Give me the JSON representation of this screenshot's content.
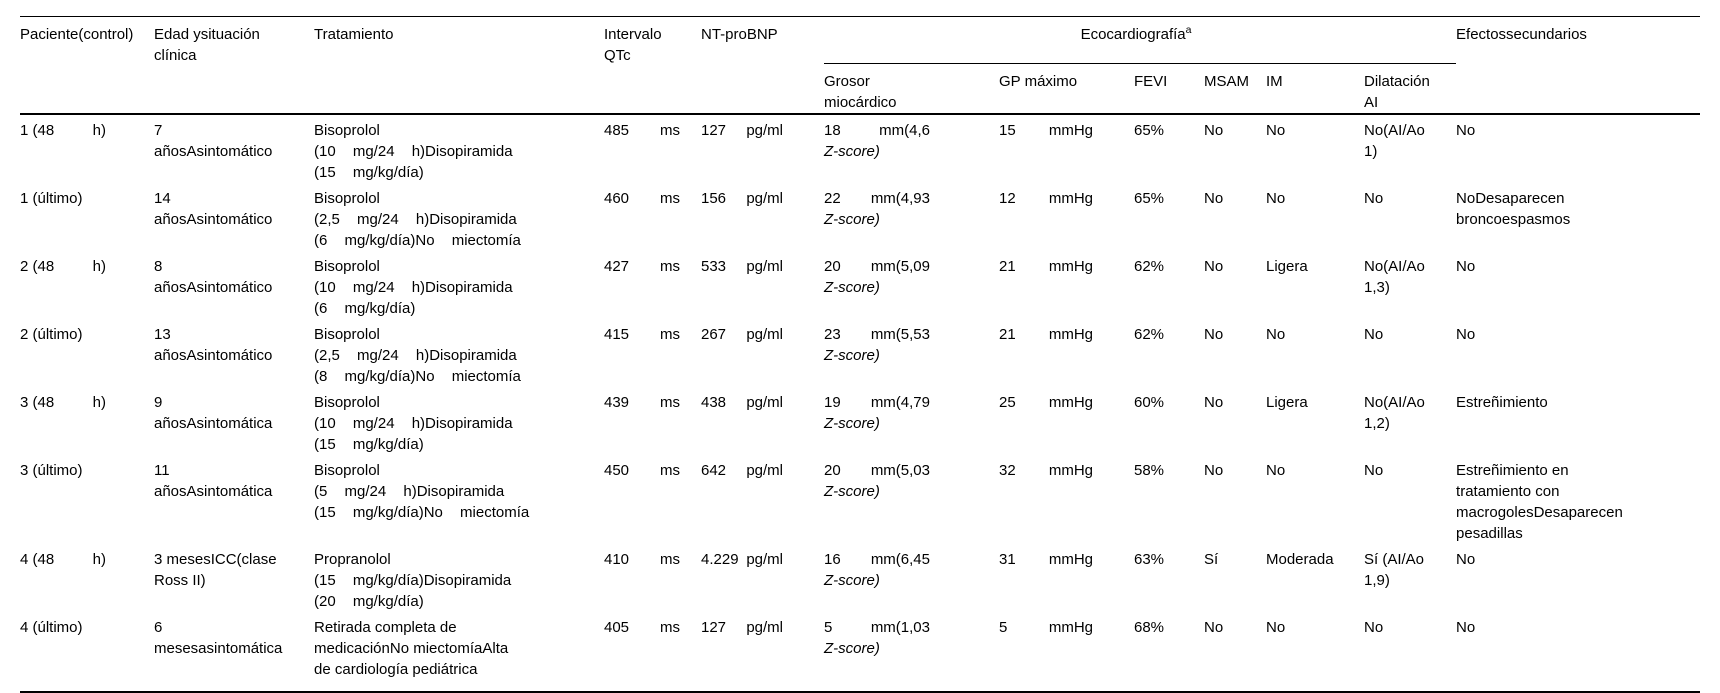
{
  "table": {
    "footnote_marker": "a",
    "headers": {
      "paciente": "Paciente(control)",
      "edad": "Edad ysituación clínica",
      "tratamiento": "Tratamiento",
      "intervalo_qtc": "Intervalo QTc",
      "ntprobnp": "NT-proBNP",
      "ecocardiografia": "Ecocardiografía",
      "grosor_miocardico": "Grosor miocárdico",
      "gp_maximo": "GP máximo",
      "fevi": "FEVI",
      "msam": "MSAM",
      "im": "IM",
      "dilatacion_ai": "Dilatación AI",
      "efectos": "Efectossecundarios"
    },
    "rows": [
      {
        "paciente": [
          "1 (48",
          "h)"
        ],
        "edad": [
          "7",
          "añosAsintomático"
        ],
        "tratamiento": [
          "Bisoprolol",
          "(10 mg/24 h)Disopiramida",
          "(15 mg/kg/día)"
        ],
        "qtc": [
          "485",
          "ms"
        ],
        "ntprobnp": [
          "127",
          "pg/ml"
        ],
        "grosor": {
          "valor": "18",
          "unidad": "mm(4,6",
          "zscore": "Z-score)"
        },
        "gp": [
          "15",
          "mmHg"
        ],
        "fevi": "65%",
        "msam": "No",
        "im": "No",
        "dilatacion": [
          "No(AI/Ao",
          "1)"
        ],
        "efectos": [
          "No"
        ]
      },
      {
        "paciente": [
          "1 (último)"
        ],
        "edad": [
          "14",
          "añosAsintomático"
        ],
        "tratamiento": [
          "Bisoprolol",
          "(2,5 mg/24 h)Disopiramida",
          "(6 mg/kg/día)No miectomía"
        ],
        "qtc": [
          "460",
          "ms"
        ],
        "ntprobnp": [
          "156",
          "pg/ml"
        ],
        "grosor": {
          "valor": "22",
          "unidad": "mm(4,93",
          "zscore": "Z-score)"
        },
        "gp": [
          "12",
          "mmHg"
        ],
        "fevi": "65%",
        "msam": "No",
        "im": "No",
        "dilatacion": [
          "No"
        ],
        "efectos": [
          "NoDesaparecen",
          "broncoespasmos"
        ]
      },
      {
        "paciente": [
          "2 (48",
          "h)"
        ],
        "edad": [
          "8",
          "añosAsintomático"
        ],
        "tratamiento": [
          "Bisoprolol",
          "(10 mg/24 h)Disopiramida",
          "(6 mg/kg/día)"
        ],
        "qtc": [
          "427",
          "ms"
        ],
        "ntprobnp": [
          "533",
          "pg/ml"
        ],
        "grosor": {
          "valor": "20",
          "unidad": "mm(5,09",
          "zscore": "Z-score)"
        },
        "gp": [
          "21",
          "mmHg"
        ],
        "fevi": "62%",
        "msam": "No",
        "im": "Ligera",
        "dilatacion": [
          "No(AI/Ao",
          "1,3)"
        ],
        "efectos": [
          "No"
        ]
      },
      {
        "paciente": [
          "2 (último)"
        ],
        "edad": [
          "13",
          "añosAsintomático"
        ],
        "tratamiento": [
          "Bisoprolol",
          "(2,5 mg/24 h)Disopiramida",
          "(8 mg/kg/día)No miectomía"
        ],
        "qtc": [
          "415",
          "ms"
        ],
        "ntprobnp": [
          "267",
          "pg/ml"
        ],
        "grosor": {
          "valor": "23",
          "unidad": "mm(5,53",
          "zscore": "Z-score)"
        },
        "gp": [
          "21",
          "mmHg"
        ],
        "fevi": "62%",
        "msam": "No",
        "im": "No",
        "dilatacion": [
          "No"
        ],
        "efectos": [
          "No"
        ]
      },
      {
        "paciente": [
          "3 (48",
          "h)"
        ],
        "edad": [
          "9",
          "añosAsintomática"
        ],
        "tratamiento": [
          "Bisoprolol",
          "(10 mg/24 h)Disopiramida",
          "(15 mg/kg/día)"
        ],
        "qtc": [
          "439",
          "ms"
        ],
        "ntprobnp": [
          "438",
          "pg/ml"
        ],
        "grosor": {
          "valor": "19",
          "unidad": "mm(4,79",
          "zscore": "Z-score)"
        },
        "gp": [
          "25",
          "mmHg"
        ],
        "fevi": "60%",
        "msam": "No",
        "im": "Ligera",
        "dilatacion": [
          "No(AI/Ao",
          "1,2)"
        ],
        "efectos": [
          "Estreñimiento"
        ]
      },
      {
        "paciente": [
          "3 (último)"
        ],
        "edad": [
          "11",
          "añosAsintomática"
        ],
        "tratamiento": [
          "Bisoprolol",
          "(5 mg/24 h)Disopiramida",
          "(15 mg/kg/día)No miectomía"
        ],
        "qtc": [
          "450",
          "ms"
        ],
        "ntprobnp": [
          "642",
          "pg/ml"
        ],
        "grosor": {
          "valor": "20",
          "unidad": "mm(5,03",
          "zscore": "Z-score)"
        },
        "gp": [
          "32",
          "mmHg"
        ],
        "fevi": "58%",
        "msam": "No",
        "im": "No",
        "dilatacion": [
          "No"
        ],
        "efectos": [
          "Estreñimiento en",
          "tratamiento con",
          "macrogolesDesaparecen",
          "pesadillas"
        ]
      },
      {
        "paciente": [
          "4 (48",
          "h)"
        ],
        "edad": [
          "3 mesesICC(clase",
          "Ross II)"
        ],
        "tratamiento": [
          "Propranolol",
          "(15 mg/kg/día)Disopiramida",
          "(20 mg/kg/día)"
        ],
        "qtc": [
          "410",
          "ms"
        ],
        "ntprobnp": [
          "4.229",
          "pg/ml"
        ],
        "grosor": {
          "valor": "16",
          "unidad": "mm(6,45",
          "zscore": "Z-score)"
        },
        "gp": [
          "31",
          "mmHg"
        ],
        "fevi": "63%",
        "msam": "Sí",
        "im": "Moderada",
        "dilatacion": [
          "Sí (AI/Ao",
          "1,9)"
        ],
        "efectos": [
          "No"
        ]
      },
      {
        "paciente": [
          "4 (último)"
        ],
        "edad": [
          "6",
          "mesesasintomática"
        ],
        "tratamiento": [
          "Retirada completa de",
          "medicaciónNo miectomíaAlta",
          "de cardiología pediátrica"
        ],
        "qtc": [
          "405",
          "ms"
        ],
        "ntprobnp": [
          "127",
          "pg/ml"
        ],
        "grosor": {
          "valor": "5",
          "unidad": "mm(1,03",
          "zscore": "Z-score)"
        },
        "gp": [
          "5",
          "mmHg"
        ],
        "fevi": "68%",
        "msam": "No",
        "im": "No",
        "dilatacion": [
          "No"
        ],
        "efectos": [
          "No"
        ]
      }
    ]
  }
}
